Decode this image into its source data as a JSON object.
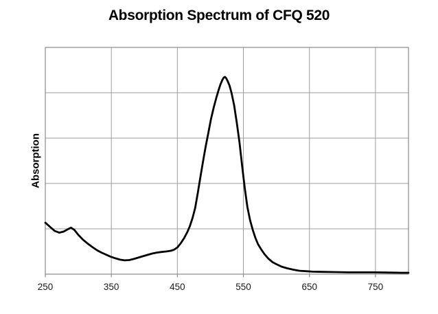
{
  "chart": {
    "title": "Absorption Spectrum of CFQ 520",
    "y_axis_label": "Absorption",
    "colors": {
      "line": "#000000",
      "grid": "#9d9d9d",
      "frame": "#8a8a8a",
      "tick": "#8a8a8a",
      "text": "#1a1a1a",
      "background": "#ffffff"
    }
  },
  "chart_data": {
    "type": "line",
    "title": "Absorption Spectrum of CFQ 520",
    "xlabel": "",
    "ylabel": "Absorption",
    "xlim": [
      250,
      800
    ],
    "ylim": [
      0,
      1
    ],
    "x_ticks": [
      250,
      350,
      450,
      550,
      650,
      750
    ],
    "y_tick_labels_shown": false,
    "y_gridline_values": [
      0.2,
      0.4,
      0.6,
      0.8
    ],
    "grid": true,
    "legend": null,
    "peak_wavelength_nm": 520,
    "series": [
      {
        "name": "absorption",
        "units": "normalized (fraction of y-axis full scale; no y tick labels shown)",
        "points": [
          [
            250,
            0.227
          ],
          [
            257,
            0.209
          ],
          [
            264,
            0.191
          ],
          [
            271,
            0.183
          ],
          [
            278,
            0.188
          ],
          [
            284,
            0.198
          ],
          [
            289,
            0.205
          ],
          [
            294,
            0.195
          ],
          [
            300,
            0.173
          ],
          [
            307,
            0.152
          ],
          [
            314,
            0.135
          ],
          [
            321,
            0.12
          ],
          [
            328,
            0.106
          ],
          [
            335,
            0.095
          ],
          [
            342,
            0.086
          ],
          [
            349,
            0.077
          ],
          [
            356,
            0.07
          ],
          [
            363,
            0.064
          ],
          [
            370,
            0.061
          ],
          [
            377,
            0.062
          ],
          [
            384,
            0.067
          ],
          [
            391,
            0.073
          ],
          [
            398,
            0.079
          ],
          [
            405,
            0.085
          ],
          [
            412,
            0.091
          ],
          [
            419,
            0.095
          ],
          [
            426,
            0.098
          ],
          [
            433,
            0.1
          ],
          [
            440,
            0.103
          ],
          [
            445,
            0.108
          ],
          [
            450,
            0.118
          ],
          [
            455,
            0.136
          ],
          [
            460,
            0.158
          ],
          [
            465,
            0.185
          ],
          [
            469,
            0.212
          ],
          [
            473,
            0.248
          ],
          [
            477,
            0.292
          ],
          [
            481,
            0.36
          ],
          [
            485,
            0.43
          ],
          [
            489,
            0.5
          ],
          [
            493,
            0.565
          ],
          [
            497,
            0.625
          ],
          [
            501,
            0.685
          ],
          [
            505,
            0.735
          ],
          [
            509,
            0.778
          ],
          [
            512,
            0.808
          ],
          [
            515,
            0.835
          ],
          [
            518,
            0.856
          ],
          [
            520,
            0.866
          ],
          [
            522,
            0.87
          ],
          [
            524,
            0.864
          ],
          [
            526,
            0.852
          ],
          [
            529,
            0.832
          ],
          [
            532,
            0.8
          ],
          [
            536,
            0.744
          ],
          [
            540,
            0.668
          ],
          [
            544,
            0.582
          ],
          [
            548,
            0.48
          ],
          [
            552,
            0.38
          ],
          [
            556,
            0.297
          ],
          [
            560,
            0.239
          ],
          [
            564,
            0.197
          ],
          [
            568,
            0.161
          ],
          [
            572,
            0.133
          ],
          [
            577,
            0.109
          ],
          [
            582,
            0.088
          ],
          [
            588,
            0.068
          ],
          [
            594,
            0.053
          ],
          [
            600,
            0.044
          ],
          [
            608,
            0.033
          ],
          [
            616,
            0.026
          ],
          [
            625,
            0.02
          ],
          [
            635,
            0.015
          ],
          [
            645,
            0.013
          ],
          [
            655,
            0.011
          ],
          [
            670,
            0.01
          ],
          [
            690,
            0.009
          ],
          [
            710,
            0.008
          ],
          [
            730,
            0.008
          ],
          [
            750,
            0.008
          ],
          [
            770,
            0.007
          ],
          [
            790,
            0.006
          ],
          [
            800,
            0.006
          ]
        ]
      }
    ]
  }
}
